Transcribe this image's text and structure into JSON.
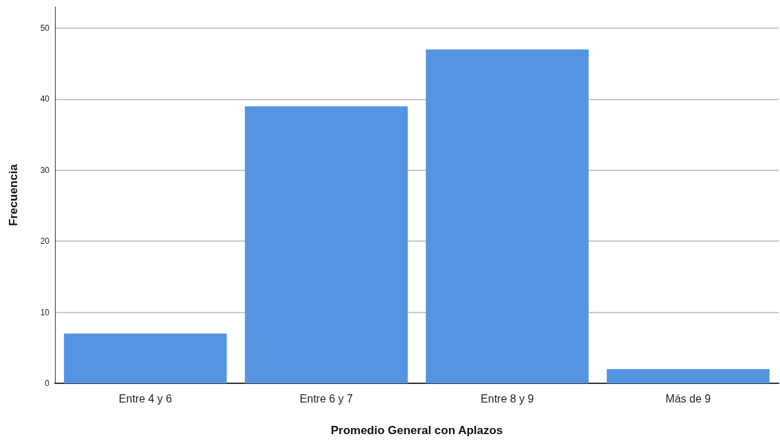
{
  "chart_data": {
    "type": "bar",
    "xlabel": "Promedio General con Aplazos",
    "ylabel": "Frecuencia",
    "categories": [
      "Entre 4 y 6",
      "Entre 6 y 7",
      "Entre 8 y 9",
      "Más de 9"
    ],
    "values": [
      7,
      39,
      47,
      2
    ],
    "color": "#5594e2",
    "ylim": [
      0,
      53
    ],
    "yticks": [
      0,
      10,
      20,
      30,
      40,
      50
    ],
    "grid": "y"
  }
}
